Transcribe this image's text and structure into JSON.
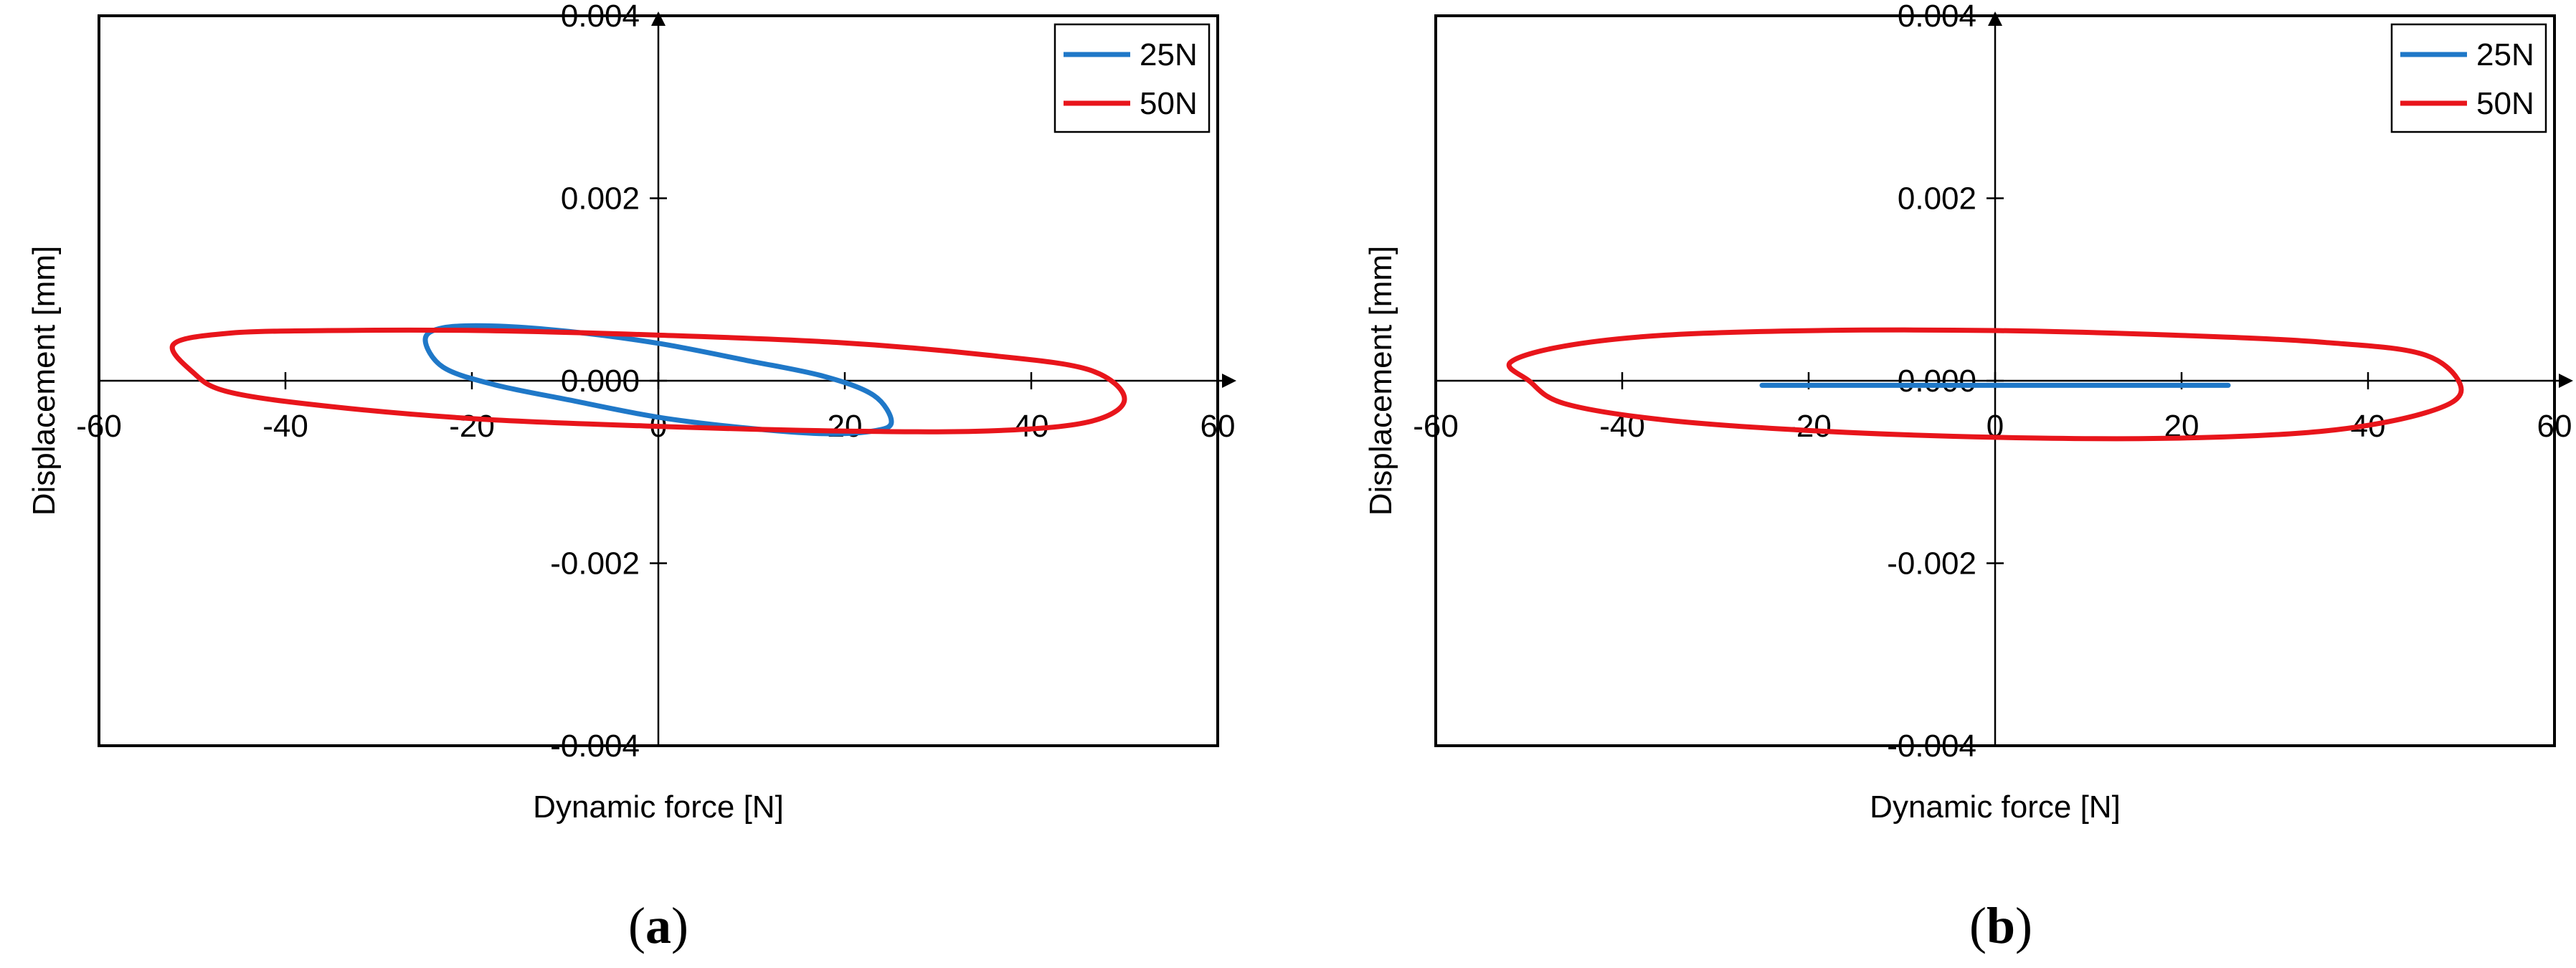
{
  "chart_data": [
    {
      "type": "line",
      "subplot": "(a)",
      "caption_letter": "a",
      "xlabel": "Dynamic force [N]",
      "ylabel": "Displacement [mm]",
      "xlim": [
        -60,
        60
      ],
      "ylim": [
        -0.004,
        0.004
      ],
      "xticks": [
        -60,
        -40,
        -20,
        0,
        20,
        40,
        60
      ],
      "yticks": [
        0.004,
        0.002,
        0.0,
        -0.002,
        -0.004
      ],
      "xtick_labels": [
        "-60",
        "-40",
        "-20",
        "0",
        "20",
        "40",
        "60"
      ],
      "ytick_labels": [
        "0.004",
        "0.002",
        "0.000",
        "-0.002",
        "-0.004"
      ],
      "grid": false,
      "legend": "top-right",
      "series": [
        {
          "name": "25N",
          "color": "#1f78c8",
          "amplitude": 25,
          "loop": true,
          "x": [
            25.0,
            23.1,
            17.7,
            9.6,
            0.0,
            -9.6,
            -17.7,
            -23.1,
            -25.0,
            -23.1,
            -17.7,
            -9.6,
            0.0,
            9.6,
            17.7,
            23.1,
            25.0
          ],
          "y": [
            -0.00045,
            -0.00055,
            -0.00058,
            -0.00052,
            -0.0004,
            -0.00021,
            -4e-05,
            0.00015,
            0.00045,
            0.00058,
            0.0006,
            0.00054,
            0.00041,
            0.00022,
            5e-05,
            -0.00016,
            -0.00045
          ]
        },
        {
          "name": "50N",
          "color": "#e8151b",
          "amplitude": 50,
          "loop": true,
          "x": [
            50.0,
            46.2,
            35.4,
            19.1,
            0.0,
            -19.1,
            -35.4,
            -46.2,
            -50.0,
            -52.0,
            -46.2,
            -35.4,
            -19.1,
            0.0,
            19.1,
            35.4,
            46.2,
            50.0
          ],
          "y": [
            -0.0002,
            -0.00045,
            -0.00055,
            -0.00055,
            -0.0005,
            -0.00042,
            -0.00028,
            -0.00012,
            0.0001,
            0.0004,
            0.00052,
            0.00055,
            0.00055,
            0.0005,
            0.00042,
            0.00028,
            0.00012,
            -0.0002
          ]
        }
      ]
    },
    {
      "type": "line",
      "subplot": "(b)",
      "caption_letter": "b",
      "xlabel": "Dynamic force [N]",
      "ylabel": "Displacement [mm]",
      "xlim": [
        -60,
        60
      ],
      "ylim": [
        -0.004,
        0.004
      ],
      "xticks": [
        -60,
        -40,
        -20,
        0,
        20,
        40,
        60
      ],
      "yticks": [
        0.004,
        0.002,
        0.0,
        -0.002,
        -0.004
      ],
      "xtick_labels": [
        "-60",
        "-40",
        "-20",
        "0",
        "20",
        "40",
        "60"
      ],
      "ytick_labels": [
        "0.004",
        "0.002",
        "0.000",
        "-0.002",
        "-0.004"
      ],
      "grid": false,
      "legend": "top-right",
      "series": [
        {
          "name": "25N",
          "color": "#1f78c8",
          "amplitude": 25,
          "loop": false,
          "x": [
            -25.0,
            25.0
          ],
          "y": [
            -5e-05,
            -5e-05
          ]
        },
        {
          "name": "50N",
          "color": "#e8151b",
          "amplitude": 50,
          "loop": true,
          "x": [
            50.0,
            46.2,
            35.4,
            19.1,
            0.0,
            -19.1,
            -35.4,
            -46.2,
            -50.0,
            -52.0,
            -46.2,
            -35.4,
            -19.1,
            0.0,
            19.1,
            35.4,
            46.2,
            50.0
          ],
          "y": [
            -0.0001,
            -0.00035,
            -0.00055,
            -0.00063,
            -0.00062,
            -0.00055,
            -0.00043,
            -0.00025,
            0.0,
            0.0002,
            0.00038,
            0.0005,
            0.00055,
            0.00055,
            0.0005,
            0.00042,
            0.00028,
            -0.0001
          ]
        }
      ]
    }
  ]
}
